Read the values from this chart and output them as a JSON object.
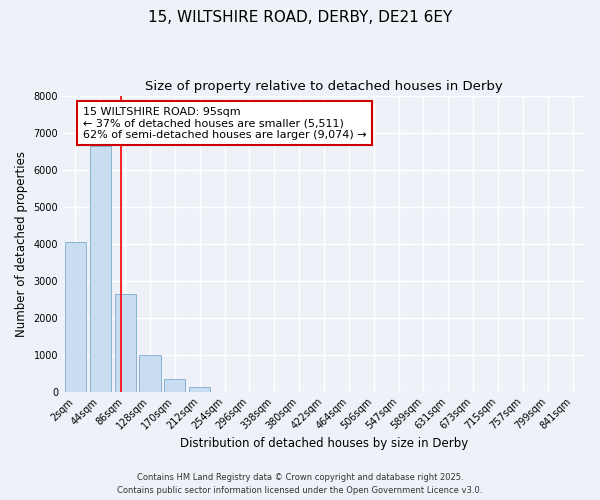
{
  "title_line1": "15, WILTSHIRE ROAD, DERBY, DE21 6EY",
  "title_line2": "Size of property relative to detached houses in Derby",
  "xlabel": "Distribution of detached houses by size in Derby",
  "ylabel": "Number of detached properties",
  "categories": [
    "2sqm",
    "44sqm",
    "86sqm",
    "128sqm",
    "170sqm",
    "212sqm",
    "254sqm",
    "296sqm",
    "338sqm",
    "380sqm",
    "422sqm",
    "464sqm",
    "506sqm",
    "547sqm",
    "589sqm",
    "631sqm",
    "673sqm",
    "715sqm",
    "757sqm",
    "799sqm",
    "841sqm"
  ],
  "bar_heights": [
    4050,
    6650,
    2650,
    980,
    350,
    120,
    0,
    0,
    0,
    0,
    0,
    0,
    0,
    0,
    0,
    0,
    0,
    0,
    0,
    0,
    0
  ],
  "bar_color": "#c9ddf0",
  "bar_edge_color": "#8ab4d4",
  "ylim": [
    0,
    8000
  ],
  "yticks": [
    0,
    1000,
    2000,
    3000,
    4000,
    5000,
    6000,
    7000,
    8000
  ],
  "red_line_x": 1.85,
  "annotation_line1": "15 WILTSHIRE ROAD: 95sqm",
  "annotation_line2": "← 37% of detached houses are smaller (5,511)",
  "annotation_line3": "62% of semi-detached houses are larger (9,074) →",
  "annotation_box_color": "#ffffff",
  "annotation_box_edge_color": "#cc0000",
  "footer_line1": "Contains HM Land Registry data © Crown copyright and database right 2025.",
  "footer_line2": "Contains public sector information licensed under the Open Government Licence v3.0.",
  "bg_color": "#eef2f8",
  "plot_bg_color": "#eef2f8",
  "grid_color": "#ffffff",
  "title_fontsize": 11,
  "subtitle_fontsize": 9.5,
  "axis_label_fontsize": 8.5,
  "tick_fontsize": 7,
  "annotation_fontsize": 8,
  "footer_fontsize": 6
}
